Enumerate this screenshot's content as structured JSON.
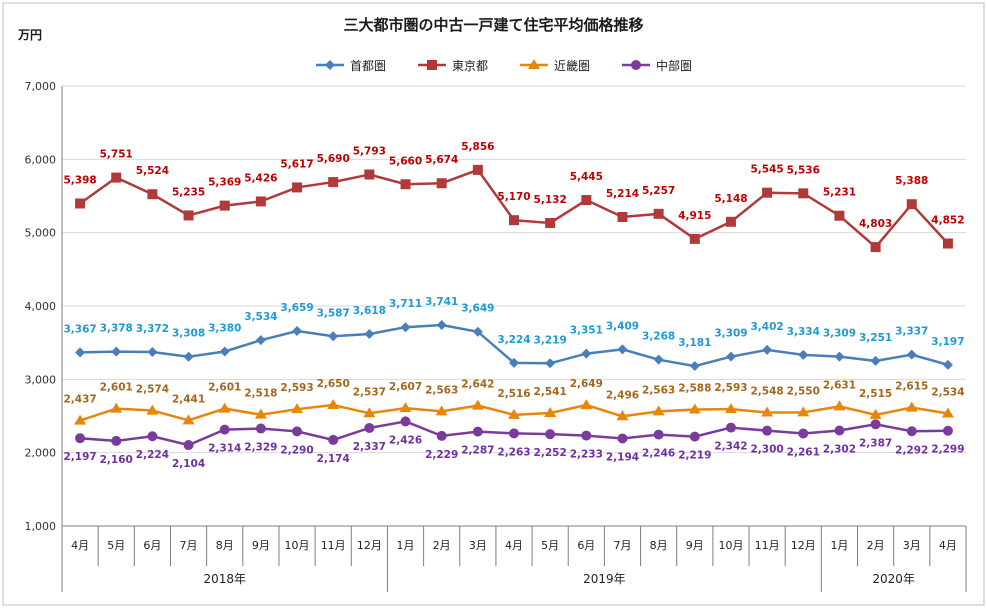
{
  "chart_data": {
    "type": "line",
    "title": "三大都市圏の中古一戸建て住宅平均価格推移",
    "unit_label": "万円",
    "ylim": [
      1000,
      7000
    ],
    "yticks": [
      "1,000",
      "2,000",
      "3,000",
      "4,000",
      "5,000",
      "6,000",
      "7,000"
    ],
    "ytick_values": [
      1000,
      2000,
      3000,
      4000,
      5000,
      6000,
      7000
    ],
    "grid": "horizontal",
    "legend_position": "top",
    "categories": [
      "4月",
      "5月",
      "6月",
      "7月",
      "8月",
      "9月",
      "10月",
      "11月",
      "12月",
      "1月",
      "2月",
      "3月",
      "4月",
      "5月",
      "6月",
      "7月",
      "8月",
      "9月",
      "10月",
      "11月",
      "12月",
      "1月",
      "2月",
      "3月",
      "4月"
    ],
    "year_groups": [
      {
        "label": "2018年",
        "start": 0,
        "end": 8
      },
      {
        "label": "2019年",
        "start": 9,
        "end": 20
      },
      {
        "label": "2020年",
        "start": 21,
        "end": 24
      }
    ],
    "series": [
      {
        "name": "首都圏",
        "color": "#4a7ebb",
        "label_color": "#1f9ad6",
        "marker": "diamond",
        "values": [
          3367,
          3378,
          3372,
          3308,
          3380,
          3534,
          3659,
          3587,
          3618,
          3711,
          3741,
          3649,
          3224,
          3219,
          3351,
          3409,
          3268,
          3181,
          3309,
          3402,
          3334,
          3309,
          3251,
          3337,
          3197
        ],
        "labels": [
          "3,367",
          "3,378",
          "3,372",
          "3,308",
          "3,380",
          "3,534",
          "3,659",
          "3,587",
          "3,618",
          "3,711",
          "3,741",
          "3,649",
          "3,224",
          "3,219",
          "3,351",
          "3,409",
          "3,268",
          "3,181",
          "3,309",
          "3,402",
          "3,334",
          "3,309",
          "3,251",
          "3,337",
          "3,197"
        ]
      },
      {
        "name": "東京都",
        "color": "#b03a3a",
        "label_color": "#c00000",
        "marker": "square",
        "values": [
          5398,
          5751,
          5524,
          5235,
          5369,
          5426,
          5617,
          5690,
          5793,
          5660,
          5674,
          5856,
          5170,
          5132,
          5445,
          5214,
          5257,
          4915,
          5148,
          5545,
          5536,
          5231,
          4803,
          5388,
          4852
        ],
        "labels": [
          "5,398",
          "5,751",
          "5,524",
          "5,235",
          "5,369",
          "5,426",
          "5,617",
          "5,690",
          "5,793",
          "5,660",
          "5,674",
          "5,856",
          "5,170",
          "5,132",
          "5,445",
          "5,214",
          "5,257",
          "4,915",
          "5,148",
          "5,545",
          "5,536",
          "5,231",
          "4,803",
          "5,388",
          "4,852"
        ]
      },
      {
        "name": "近畿圏",
        "color": "#e8860c",
        "label_color": "#a5661e",
        "marker": "triangle",
        "values": [
          2437,
          2601,
          2574,
          2441,
          2601,
          2518,
          2593,
          2650,
          2537,
          2607,
          2563,
          2642,
          2516,
          2541,
          2649,
          2496,
          2563,
          2588,
          2593,
          2548,
          2550,
          2631,
          2515,
          2615,
          2534
        ],
        "labels": [
          "2,437",
          "2,601",
          "2,574",
          "2,441",
          "2,601",
          "2,518",
          "2,593",
          "2,650",
          "2,537",
          "2,607",
          "2,563",
          "2,642",
          "2,516",
          "2,541",
          "2,649",
          "2,496",
          "2,563",
          "2,588",
          "2,593",
          "2,548",
          "2,550",
          "2,631",
          "2,515",
          "2,615",
          "2,534"
        ]
      },
      {
        "name": "中部圏",
        "color": "#7a3c9c",
        "label_color": "#7030a0",
        "marker": "circle",
        "values": [
          2197,
          2160,
          2224,
          2104,
          2314,
          2329,
          2290,
          2174,
          2337,
          2426,
          2229,
          2287,
          2263,
          2252,
          2233,
          2194,
          2246,
          2219,
          2342,
          2300,
          2261,
          2302,
          2387,
          2292,
          2299
        ],
        "labels": [
          "2,197",
          "2,160",
          "2,224",
          "2,104",
          "2,314",
          "2,329",
          "2,290",
          "2,174",
          "2,337",
          "2,426",
          "2,229",
          "2,287",
          "2,263",
          "2,252",
          "2,233",
          "2,194",
          "2,246",
          "2,219",
          "2,342",
          "2,300",
          "2,261",
          "2,302",
          "2,387",
          "2,292",
          "2,299"
        ]
      }
    ]
  }
}
